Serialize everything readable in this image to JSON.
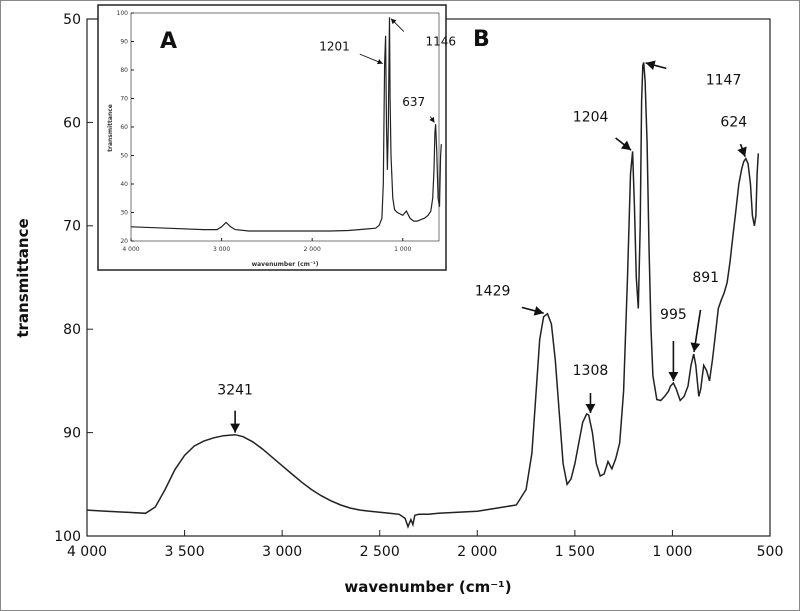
{
  "chart_data": [
    {
      "panel": "B",
      "type": "line",
      "xlabel": "wavenumber (cm⁻¹)",
      "ylabel": "transmittance",
      "xlim": [
        4000,
        500
      ],
      "ylim": [
        100,
        50
      ],
      "x_reversed": true,
      "y_reversed": true,
      "x_ticks": [
        4000,
        3500,
        3000,
        2500,
        2000,
        1500,
        1000,
        500
      ],
      "x_tick_labels": [
        "4 000",
        "3 500",
        "3 000",
        "2 500",
        "2 000",
        "1 500",
        "1 000",
        "500"
      ],
      "y_ticks": [
        50,
        60,
        70,
        80,
        90,
        100
      ],
      "y_tick_labels": [
        "50",
        "60",
        "70",
        "80",
        "90",
        "100"
      ],
      "grid": false,
      "series": [
        {
          "x": [
            4000,
            3900,
            3800,
            3700,
            3650,
            3600,
            3550,
            3500,
            3450,
            3400,
            3350,
            3300,
            3241,
            3200,
            3150,
            3100,
            3050,
            3000,
            2950,
            2900,
            2850,
            2800,
            2750,
            2700,
            2650,
            2600,
            2550,
            2500,
            2450,
            2400,
            2370,
            2355,
            2340,
            2330,
            2320,
            2300,
            2250,
            2200,
            2100,
            2000,
            1900,
            1800,
            1750,
            1720,
            1700,
            1680,
            1660,
            1640,
            1620,
            1600,
            1580,
            1560,
            1540,
            1520,
            1500,
            1480,
            1460,
            1440,
            1429,
            1410,
            1390,
            1370,
            1350,
            1330,
            1310,
            1300,
            1290,
            1270,
            1250,
            1230,
            1215,
            1204,
            1195,
            1185,
            1175,
            1165,
            1158,
            1152,
            1147,
            1140,
            1130,
            1120,
            1110,
            1100,
            1080,
            1060,
            1040,
            1020,
            1010,
            995,
            980,
            960,
            940,
            920,
            905,
            891,
            880,
            865,
            855,
            840,
            825,
            810,
            795,
            780,
            765,
            750,
            735,
            720,
            705,
            690,
            675,
            660,
            645,
            635,
            624,
            612,
            600,
            590,
            580,
            572,
            566,
            560
          ],
          "y": [
            97.5,
            97.6,
            97.7,
            97.8,
            97.2,
            95.5,
            93.6,
            92.2,
            91.3,
            90.8,
            90.5,
            90.3,
            90.2,
            90.4,
            90.9,
            91.6,
            92.4,
            93.2,
            94.0,
            94.8,
            95.5,
            96.1,
            96.6,
            97.0,
            97.3,
            97.5,
            97.6,
            97.7,
            97.8,
            97.9,
            98.3,
            99.1,
            98.4,
            98.9,
            98.0,
            97.9,
            97.9,
            97.8,
            97.7,
            97.6,
            97.3,
            97.0,
            95.5,
            92.0,
            86.5,
            81.0,
            78.8,
            78.5,
            79.5,
            83.0,
            88.0,
            93.0,
            95.0,
            94.5,
            93.0,
            91.0,
            89.0,
            88.2,
            88.3,
            90.0,
            93.0,
            94.2,
            94.0,
            92.8,
            93.5,
            93.0,
            92.5,
            91.0,
            86.0,
            75.0,
            65.0,
            62.8,
            68.0,
            75.0,
            78.0,
            70.0,
            58.0,
            54.5,
            54.2,
            56.0,
            62.0,
            72.0,
            80.0,
            84.5,
            86.8,
            86.9,
            86.5,
            86.0,
            85.5,
            85.2,
            85.8,
            86.9,
            86.5,
            85.5,
            83.5,
            82.4,
            83.5,
            86.5,
            85.8,
            83.5,
            84.0,
            85.0,
            83.0,
            80.5,
            78.0,
            77.2,
            76.5,
            75.5,
            73.5,
            71.0,
            68.5,
            66.0,
            64.5,
            63.8,
            63.5,
            64.0,
            66.0,
            69.0,
            70.0,
            69.0,
            65.0,
            63.0
          ]
        }
      ],
      "annotations": [
        {
          "text": "3241",
          "x": 3241,
          "y": 90.2
        },
        {
          "text": "1429",
          "x": 1650,
          "y": 78.5
        },
        {
          "text": "1308",
          "x": 1420,
          "y": 88.3
        },
        {
          "text": "1204",
          "x": 1204,
          "y": 62.8
        },
        {
          "text": "1147",
          "x": 1147,
          "y": 54.2
        },
        {
          "text": "995",
          "x": 995,
          "y": 85.2
        },
        {
          "text": "891",
          "x": 891,
          "y": 82.4
        },
        {
          "text": "624",
          "x": 624,
          "y": 63.5
        }
      ]
    },
    {
      "panel": "A",
      "type": "line",
      "xlabel": "wavenumber (cm⁻¹)",
      "ylabel": "transmittance",
      "xlim": [
        4000,
        600
      ],
      "ylim": [
        20,
        100
      ],
      "x_reversed": true,
      "x_ticks": [
        4000,
        3000,
        2000,
        1000
      ],
      "x_tick_labels": [
        "4 000",
        "3 000",
        "2 000",
        "1 000"
      ],
      "y_ticks": [
        20,
        30,
        40,
        50,
        60,
        70,
        80,
        90,
        100
      ],
      "y_tick_labels": [
        "20",
        "30",
        "40",
        "50",
        "60",
        "70",
        "80",
        "90",
        "100"
      ],
      "grid": false,
      "series": [
        {
          "x": [
            4000,
            3600,
            3200,
            3050,
            3000,
            2950,
            2900,
            2850,
            2700,
            2400,
            2200,
            2000,
            1800,
            1600,
            1400,
            1300,
            1260,
            1230,
            1215,
            1201,
            1190,
            1180,
            1170,
            1160,
            1150,
            1146,
            1140,
            1130,
            1110,
            1090,
            1060,
            1000,
            960,
            920,
            880,
            840,
            800,
            760,
            720,
            690,
            670,
            655,
            645,
            637,
            625,
            610,
            595,
            582,
            575
          ],
          "y": [
            25.0,
            24.5,
            24.0,
            24.0,
            25.0,
            26.5,
            25.0,
            24.0,
            23.5,
            23.5,
            23.5,
            23.5,
            23.5,
            23.7,
            24.2,
            24.5,
            25.5,
            28.0,
            40.0,
            82.0,
            92.0,
            60.0,
            45.0,
            60.0,
            90.0,
            98.5,
            70.0,
            50.0,
            35.0,
            31.0,
            30.0,
            29.0,
            30.5,
            28.0,
            27.0,
            27.0,
            27.5,
            28.0,
            29.0,
            30.5,
            35.0,
            45.0,
            58.0,
            61.0,
            52.0,
            35.0,
            32.0,
            50.0,
            54.0
          ]
        }
      ],
      "annotations": [
        {
          "text": "1201",
          "x": 1201,
          "y": 82.0
        },
        {
          "text": "1146",
          "x": 1146,
          "y": 98.5
        },
        {
          "text": "637",
          "x": 637,
          "y": 61.0
        }
      ]
    }
  ]
}
